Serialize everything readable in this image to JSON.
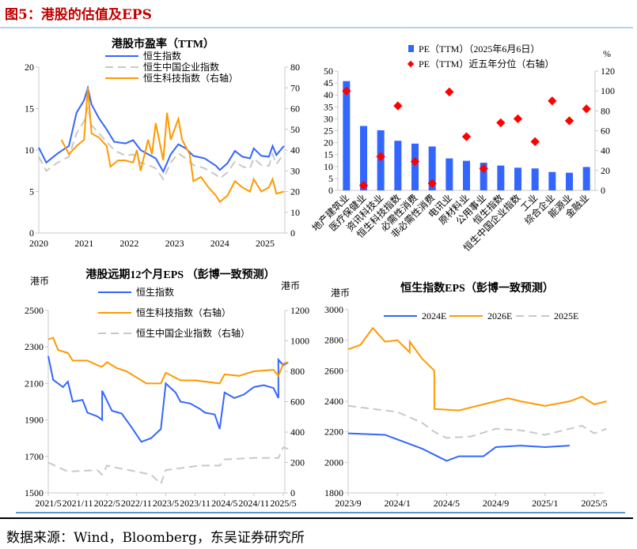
{
  "header": {
    "title": "图5：港股的估值及EPS"
  },
  "footer": {
    "source": "数据来源：Wind，Bloomberg，东吴证券研究所"
  },
  "colors": {
    "blue": "#3366ff",
    "orange": "#ff9900",
    "gray": "#c8c8c8",
    "red": "#ff0000",
    "title_red": "#c00000"
  },
  "chart_data": [
    {
      "type": "line",
      "title": "港股市盈率（TTM）",
      "ylim": [
        0,
        20
      ],
      "y2lim": [
        0,
        80
      ],
      "yticks": [
        "0",
        "5",
        "10",
        "15",
        "20"
      ],
      "y2ticks": [
        "0",
        "10",
        "20",
        "30",
        "40",
        "50",
        "60",
        "70",
        "80"
      ],
      "xticks": [
        "2020",
        "2021",
        "2022",
        "2023",
        "2024",
        "2025"
      ],
      "series": [
        {
          "name": "恒生指数",
          "axis": "left",
          "style": "solid",
          "color": "#3366ff",
          "x": [
            "2020-01",
            "2020-03",
            "2020-06",
            "2020-09",
            "2020-11",
            "2021-01",
            "2021-02",
            "2021-03",
            "2021-05",
            "2021-07",
            "2021-09",
            "2021-12",
            "2022-02",
            "2022-04",
            "2022-06",
            "2022-08",
            "2022-10",
            "2022-12",
            "2023-02",
            "2023-04",
            "2023-06",
            "2023-09",
            "2023-12",
            "2024-01",
            "2024-03",
            "2024-05",
            "2024-07",
            "2024-09",
            "2024-10",
            "2024-12",
            "2025-02",
            "2025-03",
            "2025-04",
            "2025-06"
          ],
          "y": [
            10.3,
            8.5,
            9.6,
            10.5,
            14.5,
            16,
            17.5,
            15.5,
            13.8,
            12.5,
            11,
            10.8,
            11.2,
            10,
            9.5,
            9,
            7.4,
            9.5,
            10.7,
            10.2,
            9.3,
            9,
            8.1,
            7.6,
            8.4,
            9.9,
            9.2,
            9,
            10.2,
            9.3,
            9.2,
            10.5,
            9.4,
            10.5
          ]
        },
        {
          "name": "恒生中国企业指数",
          "axis": "left",
          "style": "dash",
          "color": "#c8c8c8",
          "x": [
            "2020-01",
            "2020-03",
            "2020-06",
            "2020-09",
            "2020-11",
            "2021-01",
            "2021-02",
            "2021-03",
            "2021-05",
            "2021-07",
            "2021-09",
            "2021-12",
            "2022-02",
            "2022-04",
            "2022-06",
            "2022-08",
            "2022-10",
            "2022-12",
            "2023-02",
            "2023-04",
            "2023-06",
            "2023-09",
            "2023-12",
            "2024-01",
            "2024-03",
            "2024-05",
            "2024-07",
            "2024-09",
            "2024-10",
            "2024-12",
            "2025-02",
            "2025-03",
            "2025-04",
            "2025-06"
          ],
          "y": [
            9.2,
            7.5,
            8.5,
            9.2,
            12,
            13.5,
            15.2,
            13,
            12,
            11,
            10,
            9.3,
            9.5,
            8.5,
            8.2,
            7.8,
            6.5,
            8.5,
            9.6,
            9,
            8.2,
            7.8,
            7,
            6.6,
            7.3,
            8.6,
            8,
            7.8,
            9,
            8.2,
            8.1,
            9.5,
            8.3,
            9.6
          ]
        },
        {
          "name": "恒生科技指数（右轴）",
          "axis": "right",
          "style": "solid",
          "color": "#ff9900",
          "x": [
            "2020-07",
            "2020-09",
            "2020-11",
            "2021-01",
            "2021-02",
            "2021-03",
            "2021-05",
            "2021-07",
            "2021-08",
            "2021-10",
            "2021-12",
            "2022-02",
            "2022-03",
            "2022-04",
            "2022-06",
            "2022-07",
            "2022-08",
            "2022-10",
            "2022-11",
            "2022-12",
            "2023-02",
            "2023-03",
            "2023-05",
            "2023-06",
            "2023-08",
            "2023-10",
            "2023-12",
            "2024-01",
            "2024-03",
            "2024-05",
            "2024-07",
            "2024-09",
            "2024-10",
            "2024-12",
            "2025-02",
            "2025-03",
            "2025-04",
            "2025-06"
          ],
          "y": [
            45,
            38,
            42,
            45,
            70,
            48,
            46,
            42,
            32,
            35,
            35,
            34,
            40,
            30,
            45,
            38,
            53,
            35,
            58,
            45,
            55,
            45,
            38,
            25,
            27,
            22,
            18,
            15,
            18,
            25,
            22,
            20,
            26,
            20,
            22,
            26,
            19,
            20
          ]
        }
      ]
    },
    {
      "type": "bar",
      "legend": [
        "PE（TTM）（2025年6月6日）",
        "PE（TTM）近五年分位（右轴）"
      ],
      "y2unit": "%",
      "ylim": [
        0,
        50
      ],
      "y2lim": [
        0,
        120
      ],
      "yticks": [
        "0",
        "5",
        "10",
        "15",
        "20",
        "25",
        "30",
        "35",
        "40",
        "45",
        "50"
      ],
      "y2ticks": [
        "0",
        "20",
        "40",
        "60",
        "80",
        "100",
        "120"
      ],
      "categories": [
        "地产建筑业",
        "医疗保健业",
        "资讯科技业",
        "恒生科技指数",
        "必需性消费",
        "非必需性消费",
        "电讯业",
        "原材料业",
        "公用事业",
        "恒生指数",
        "恒生中国企业指数",
        "工业",
        "综合企业",
        "能源业",
        "金融业"
      ],
      "values": [
        45.8,
        27,
        25.2,
        20.8,
        19.6,
        18.4,
        13.4,
        12.4,
        11.6,
        10.4,
        9.5,
        9.2,
        7.7,
        7.4,
        9.8
      ],
      "percentile": [
        100,
        5,
        34,
        85,
        29,
        7,
        99,
        54,
        22,
        68,
        72,
        49,
        90,
        70,
        82
      ]
    },
    {
      "type": "line",
      "title": "港股远期12个月EPS （彭博一致预测）",
      "yunit": "港币",
      "y2unit": "港币",
      "ylim": [
        1500,
        2500
      ],
      "y2lim": [
        0,
        1200
      ],
      "yticks": [
        "1500",
        "1700",
        "1900",
        "2100",
        "2300",
        "2500"
      ],
      "y2ticks": [
        "0",
        "200",
        "400",
        "600",
        "800",
        "1000",
        "1200"
      ],
      "xticks": [
        "2021/5",
        "2021/11",
        "2022/5",
        "2022/11",
        "2023/5",
        "2023/11",
        "2024/5",
        "2024/11",
        "2025/5"
      ],
      "series": [
        {
          "name": "恒生指数",
          "axis": "left",
          "style": "solid",
          "color": "#3366ff",
          "x": [
            "2021-05",
            "2021-06",
            "2021-08",
            "2021-09",
            "2021-10",
            "2021-12",
            "2022-01",
            "2022-03",
            "2022-04",
            "2022-04",
            "2022-06",
            "2022-08",
            "2022-10",
            "2022-12",
            "2023-02",
            "2023-04",
            "2023-05",
            "2023-07",
            "2023-08",
            "2023-10",
            "2023-12",
            "2024-01",
            "2024-03",
            "2024-04",
            "2024-05",
            "2024-07",
            "2024-09",
            "2024-11",
            "2025-01",
            "2025-03",
            "2025-04",
            "2025-04",
            "2025-05",
            "2025-06"
          ],
          "y": [
            2250,
            2120,
            2080,
            2110,
            2000,
            2010,
            1940,
            1920,
            1900,
            2060,
            1950,
            1935,
            1860,
            1780,
            1800,
            1850,
            2100,
            2050,
            2000,
            1990,
            1960,
            1940,
            1930,
            1850,
            2050,
            2020,
            2040,
            2080,
            2090,
            2075,
            2020,
            2230,
            2200,
            2215
          ]
        },
        {
          "name": "恒生科技指数（右轴）",
          "axis": "right",
          "style": "solid",
          "color": "#ff9900",
          "x": [
            "2021-05",
            "2021-06",
            "2021-07",
            "2021-09",
            "2021-10",
            "2022-01",
            "2022-03",
            "2022-04",
            "2022-05",
            "2022-07",
            "2022-09",
            "2022-11",
            "2023-01",
            "2023-04",
            "2023-05",
            "2023-08",
            "2023-11",
            "2024-04",
            "2024-05",
            "2024-08",
            "2024-11",
            "2025-03",
            "2025-04",
            "2025-05",
            "2025-06"
          ],
          "y": [
            1010,
            1020,
            940,
            920,
            870,
            870,
            840,
            830,
            860,
            820,
            800,
            760,
            720,
            720,
            790,
            740,
            740,
            720,
            780,
            770,
            800,
            810,
            770,
            850,
            860
          ]
        },
        {
          "name": "恒生中国企业指数（右轴）",
          "axis": "right",
          "style": "dash",
          "color": "#c8c8c8",
          "x": [
            "2021-05",
            "2021-07",
            "2021-09",
            "2022-03",
            "2022-04",
            "2022-05",
            "2022-07",
            "2022-11",
            "2023-02",
            "2023-04",
            "2023-05",
            "2023-12",
            "2024-04",
            "2024-05",
            "2024-11",
            "2025-04",
            "2025-05",
            "2025-06"
          ],
          "y": [
            200,
            170,
            140,
            150,
            120,
            180,
            165,
            140,
            120,
            60,
            150,
            180,
            180,
            220,
            230,
            230,
            300,
            290
          ]
        }
      ]
    },
    {
      "type": "line",
      "title": "恒生指数EPS（彭博一致预测）",
      "yunit": "港币",
      "ylim": [
        1800,
        3000
      ],
      "yticks": [
        "1800",
        "2000",
        "2200",
        "2400",
        "2600",
        "2800",
        "3000"
      ],
      "xticks": [
        "2023/9",
        "2024/1",
        "2024/5",
        "2024/9",
        "2025/1",
        "2025/5"
      ],
      "series": [
        {
          "name": "2024E",
          "axis": "left",
          "style": "solid",
          "color": "#3366ff",
          "x": [
            "2023-09",
            "2023-12",
            "2024-01",
            "2024-03",
            "2024-04",
            "2024-05",
            "2024-06",
            "2024-08",
            "2024-09",
            "2024-11",
            "2025-01",
            "2025-03"
          ],
          "y": [
            2190,
            2180,
            2150,
            2090,
            2050,
            2010,
            2040,
            2040,
            2100,
            2110,
            2100,
            2110
          ]
        },
        {
          "name": "2026E",
          "axis": "left",
          "style": "solid",
          "color": "#ff9900",
          "x": [
            "2023-09",
            "2023-10",
            "2023-11",
            "2023-12",
            "2024-01",
            "2024-02",
            "2024-02",
            "2024-03",
            "2024-04",
            "2024-04",
            "2024-06",
            "2024-07",
            "2024-09",
            "2024-10",
            "2024-11",
            "2025-01",
            "2025-03",
            "2025-04",
            "2025-05",
            "2025-06"
          ],
          "y": [
            2740,
            2770,
            2880,
            2790,
            2800,
            2720,
            2790,
            2680,
            2600,
            2350,
            2340,
            2360,
            2400,
            2420,
            2400,
            2370,
            2400,
            2430,
            2380,
            2400
          ]
        },
        {
          "name": "2025E",
          "axis": "left",
          "style": "dash",
          "color": "#c8c8c8",
          "x": [
            "2023-09",
            "2023-11",
            "2024-01",
            "2024-03",
            "2024-04",
            "2024-05",
            "2024-07",
            "2024-09",
            "2024-11",
            "2025-01",
            "2025-03",
            "2025-04",
            "2025-05",
            "2025-06"
          ],
          "y": [
            2370,
            2350,
            2330,
            2260,
            2200,
            2160,
            2170,
            2220,
            2210,
            2180,
            2220,
            2240,
            2190,
            2220
          ]
        }
      ]
    }
  ]
}
